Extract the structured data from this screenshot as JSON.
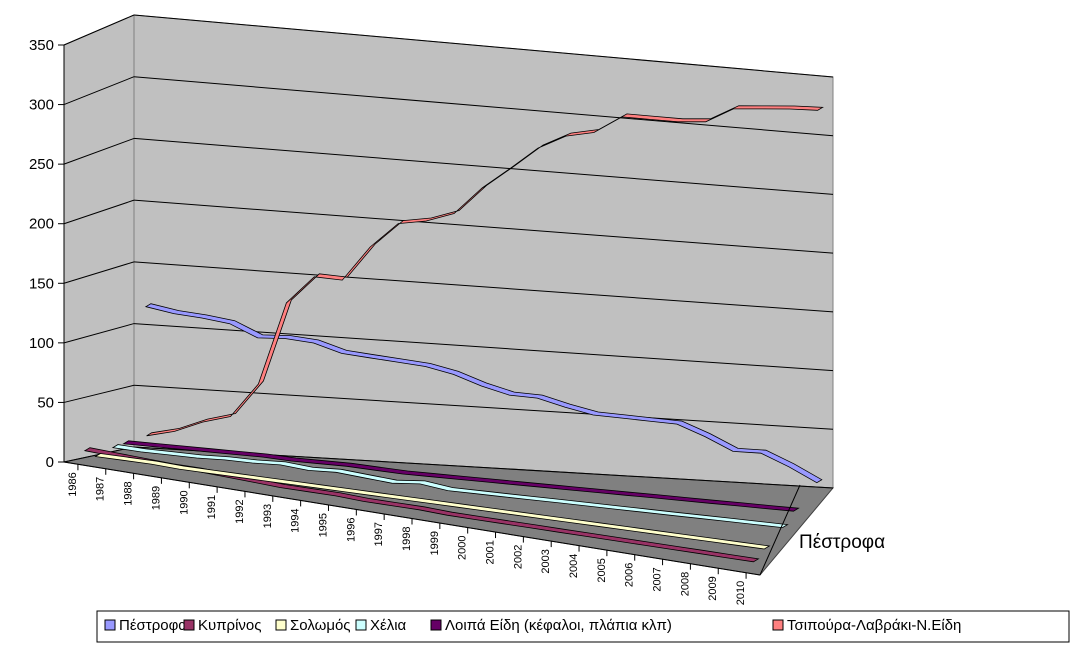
{
  "chart_data": {
    "type": "line",
    "subtype": "3d-line",
    "x_categories": [
      "1986",
      "1987",
      "1988",
      "1989",
      "1990",
      "1991",
      "1992",
      "1993",
      "1994",
      "1995",
      "1996",
      "1997",
      "1998",
      "1999",
      "2000",
      "2001",
      "2002",
      "2003",
      "2004",
      "2005",
      "2006",
      "2007",
      "2008",
      "2009",
      "2010"
    ],
    "y_ticks": [
      "0",
      "50",
      "100",
      "150",
      "200",
      "250",
      "300",
      "350"
    ],
    "ylim": [
      0,
      350
    ],
    "grid": true,
    "depth_axis_label": "Πέστροφα",
    "legend_position": "bottom",
    "series": [
      {
        "name": "Πέστροφα",
        "color": "#9999ff",
        "values": [
          115,
          111,
          109,
          106,
          96,
          97,
          95,
          88,
          86,
          84,
          82,
          77,
          69,
          63,
          62,
          56,
          51,
          50,
          49,
          48,
          39,
          28,
          28,
          18,
          6
        ]
      },
      {
        "name": "Κυπρίνος",
        "color": "#993366",
        "values": [
          10,
          9,
          8,
          7,
          7,
          6,
          5,
          4,
          4,
          4,
          3,
          3,
          3,
          2,
          2,
          2,
          2,
          2,
          2,
          2,
          2,
          2,
          2,
          2,
          2
        ]
      },
      {
        "name": "Σολωμός",
        "color": "#ffffcc",
        "values": [
          3,
          3,
          3,
          2,
          2,
          2,
          2,
          2,
          2,
          2,
          2,
          2,
          2,
          2,
          2,
          2,
          2,
          2,
          2,
          2,
          2,
          2,
          2,
          2,
          2
        ]
      },
      {
        "name": "Χέλια",
        "color": "#ccffff",
        "values": [
          7,
          6,
          6,
          6,
          7,
          7,
          8,
          6,
          7,
          5,
          3,
          5,
          2,
          2,
          2,
          2,
          2,
          2,
          2,
          2,
          2,
          2,
          2,
          2,
          2
        ]
      },
      {
        "name": "Λοιπά Είδη (κέφαλοι, πλάπια κλπ)",
        "color": "#660066",
        "values": [
          8,
          8,
          8,
          8,
          8,
          8,
          7,
          7,
          7,
          6,
          5,
          5,
          5,
          5,
          5,
          5,
          5,
          5,
          5,
          5,
          5,
          5,
          5,
          5,
          5
        ]
      },
      {
        "name": "Τσιπούρα-Λαβράκι-Ν.Είδη",
        "color": "#ff8080",
        "values": [
          10,
          15,
          24,
          30,
          58,
          126,
          149,
          148,
          177,
          198,
          202,
          210,
          233,
          251,
          270,
          282,
          287,
          302,
          302,
          302,
          304,
          317,
          319,
          321,
          322
        ]
      }
    ]
  }
}
